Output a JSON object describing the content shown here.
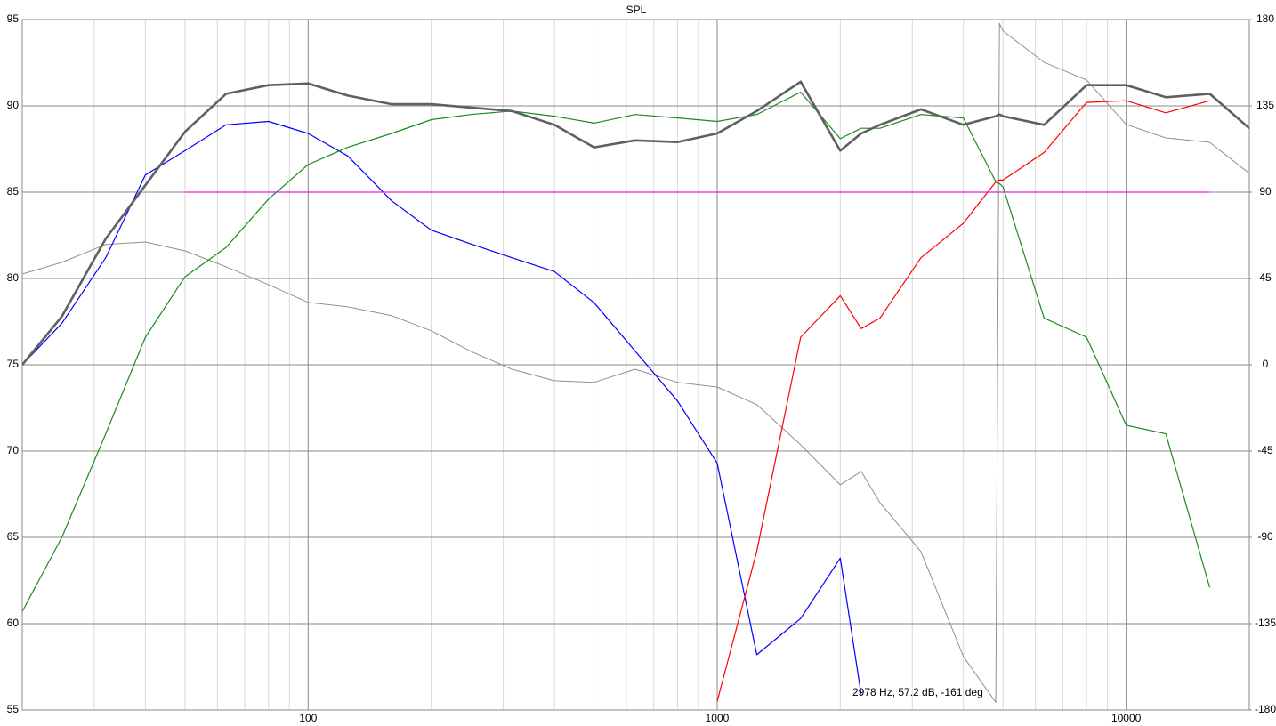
{
  "chart_data": {
    "type": "line",
    "title": "SPL",
    "annotation": "2978 Hz, 57.2 dB, -161 deg",
    "x": [
      20,
      25,
      32,
      40,
      50,
      63,
      80,
      100,
      125,
      160,
      200,
      250,
      315,
      400,
      500,
      630,
      800,
      1000,
      1250,
      1600,
      2000,
      2250,
      2500,
      3150,
      4000,
      4800,
      4900,
      5000,
      6300,
      8000,
      10000,
      12500,
      16000,
      20000
    ],
    "xlim": [
      20,
      20000
    ],
    "xlog": true,
    "xticks": [
      100,
      1000,
      10000
    ],
    "x_minor_grid": [
      30,
      40,
      50,
      60,
      70,
      80,
      90,
      200,
      300,
      400,
      500,
      600,
      700,
      800,
      900,
      2000,
      3000,
      4000,
      5000,
      6000,
      7000,
      8000,
      9000
    ],
    "ylim": [
      55,
      95
    ],
    "yticks": [
      55,
      60,
      65,
      70,
      75,
      80,
      85,
      90,
      95
    ],
    "y2lim": [
      -180,
      180
    ],
    "y2ticks": [
      -180,
      -135,
      -90,
      -45,
      0,
      45,
      90,
      135,
      180
    ],
    "grid": true,
    "series": [
      {
        "color": "#909090",
        "axis": "y2",
        "width": 1,
        "values": [
          47.3,
          53.4,
          62.7,
          64.0,
          59.4,
          51.1,
          41.8,
          32.5,
          30.2,
          25.6,
          17.7,
          7.0,
          -2.3,
          -8.3,
          -9.2,
          -2.3,
          -9.2,
          -11.6,
          -20.8,
          -41.7,
          -62.6,
          -55.6,
          -71.9,
          -97.4,
          -152.1,
          -176,
          178,
          174,
          157.7,
          148.5,
          125.3,
          118.3,
          116,
          99.8
        ]
      },
      {
        "color": "#0000ff",
        "width": 1.2,
        "values": [
          75.0,
          77.4,
          81.2,
          86.0,
          87.4,
          88.9,
          89.1,
          88.4,
          87.1,
          84.5,
          82.8,
          82.0,
          81.2,
          80.4,
          78.6,
          75.8,
          72.9,
          69.3,
          58.2,
          60.3,
          63.8,
          55.9,
          null,
          null,
          null,
          null,
          null,
          null,
          null,
          null,
          null,
          null,
          null,
          null
        ]
      },
      {
        "color": "#1a8c1a",
        "width": 1.2,
        "values": [
          60.7,
          65.0,
          71.0,
          76.6,
          80.1,
          81.8,
          84.6,
          86.6,
          87.6,
          88.4,
          89.2,
          89.5,
          89.7,
          89.4,
          89.0,
          89.5,
          89.3,
          89.1,
          89.5,
          90.8,
          88.1,
          88.7,
          88.7,
          89.5,
          89.3,
          85.6,
          85.5,
          85.3,
          77.7,
          76.6,
          71.5,
          71.0,
          62.1,
          null
        ]
      },
      {
        "color": "#ff0000",
        "width": 1.2,
        "values": [
          null,
          null,
          null,
          null,
          null,
          null,
          null,
          null,
          null,
          null,
          null,
          null,
          null,
          null,
          null,
          null,
          null,
          55.5,
          64.2,
          76.6,
          79.0,
          77.1,
          77.7,
          81.2,
          83.2,
          85.6,
          85.7,
          85.7,
          87.3,
          90.2,
          90.3,
          89.6,
          90.3,
          null
        ]
      },
      {
        "color": "#e020e0",
        "width": 1.2,
        "values": [
          null,
          null,
          null,
          null,
          85,
          85,
          85,
          85,
          85,
          85,
          85,
          85,
          85,
          85,
          85,
          85,
          85,
          85,
          85,
          85,
          85,
          85,
          85,
          85,
          85,
          85,
          85,
          85,
          85,
          85,
          85,
          85,
          85,
          null
        ]
      },
      {
        "color": "#606060",
        "width": 2.6,
        "values": [
          75.0,
          77.8,
          82.3,
          85.4,
          88.5,
          90.7,
          91.2,
          91.3,
          90.6,
          90.1,
          90.1,
          89.9,
          89.7,
          88.9,
          87.6,
          88.0,
          87.9,
          88.4,
          89.7,
          91.4,
          87.4,
          88.4,
          88.9,
          89.8,
          88.9,
          89.4,
          89.5,
          89.4,
          88.9,
          91.2,
          91.2,
          90.5,
          90.7,
          88.7
        ]
      }
    ]
  }
}
